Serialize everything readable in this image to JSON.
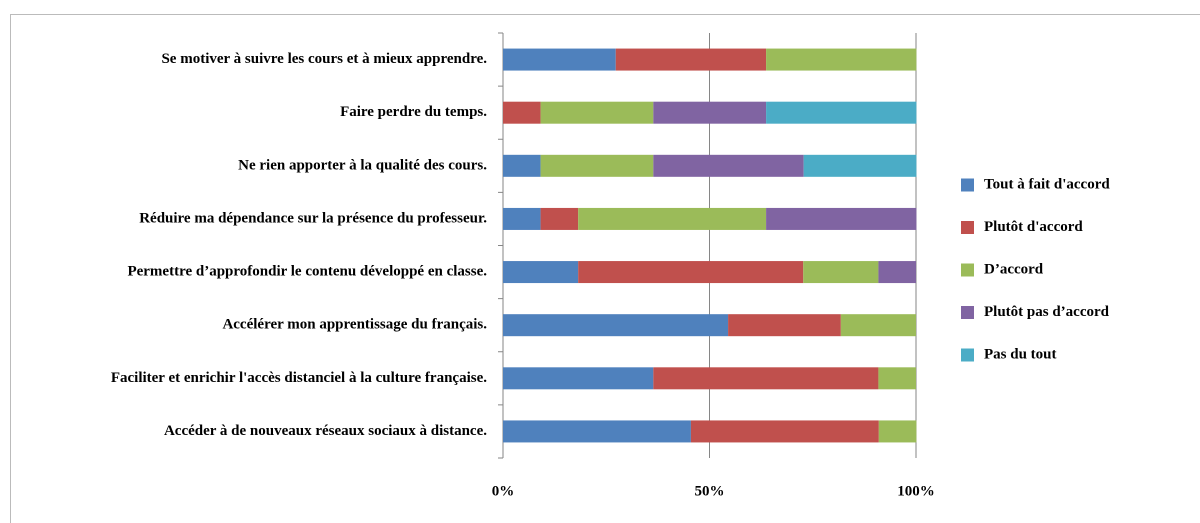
{
  "chart_data": {
    "type": "stacked-barh",
    "categories": [
      "Se motiver à suivre les cours et à mieux apprendre.",
      "Faire perdre du temps.",
      "Ne rien apporter à la qualité des cours.",
      "Réduire ma dépendance sur la présence du professeur.",
      "Permettre d’approfondir  le contenu développé  en classe.",
      "Accélérer mon apprentissage du français.",
      "Faciliter et enrichir l'accès distanciel à la culture française.",
      "Accéder à de nouveaux réseaux sociaux à distance."
    ],
    "series": [
      {
        "name": "Tout à fait d'accord",
        "color": "#4f81bd",
        "values": [
          27.3,
          0,
          9.1,
          9.1,
          18.2,
          54.5,
          36.4,
          45.5
        ]
      },
      {
        "name": "Plutôt d'accord",
        "color": "#c0504d",
        "values": [
          36.4,
          9.1,
          0,
          9.1,
          54.5,
          27.3,
          54.5,
          45.5
        ]
      },
      {
        "name": "D’accord",
        "color": "#9bbb59",
        "values": [
          36.4,
          27.3,
          27.3,
          45.5,
          18.2,
          18.2,
          9.1,
          9.1
        ]
      },
      {
        "name": "Plutôt pas d’accord",
        "color": "#8064a2",
        "values": [
          0,
          27.3,
          36.4,
          36.4,
          9.1,
          0,
          0,
          0
        ]
      },
      {
        "name": "Pas du tout",
        "color": "#4bacc6",
        "values": [
          0,
          36.4,
          27.3,
          0,
          0,
          0,
          0,
          0
        ]
      }
    ],
    "xlim": [
      0,
      100
    ],
    "xticks": [
      {
        "value": 0,
        "label": "0%"
      },
      {
        "value": 50,
        "label": "50%"
      },
      {
        "value": 100,
        "label": "100%"
      }
    ],
    "grid": true,
    "legend": "right"
  }
}
